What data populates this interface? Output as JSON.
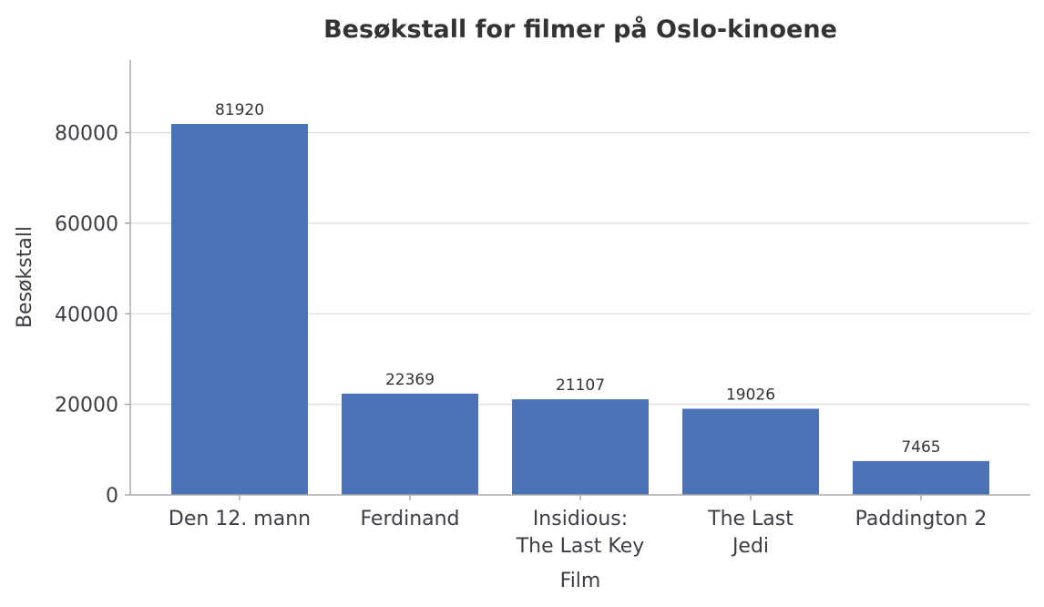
{
  "chart_data": {
    "type": "bar",
    "title": "Besøkstall for filmer på Oslo-kinoene",
    "xlabel": "Film",
    "ylabel": "Besøkstall",
    "categories": [
      [
        "Den 12. mann"
      ],
      [
        "Ferdinand"
      ],
      [
        "Insidious:",
        "The Last Key"
      ],
      [
        "The Last",
        "Jedi"
      ],
      [
        "Paddington 2"
      ]
    ],
    "values": [
      81920,
      22369,
      21107,
      19026,
      7465
    ],
    "yticks": [
      0,
      20000,
      40000,
      60000,
      80000
    ],
    "ylim": [
      0,
      96000
    ],
    "grid": true,
    "bar_color": "#4a72b5"
  }
}
